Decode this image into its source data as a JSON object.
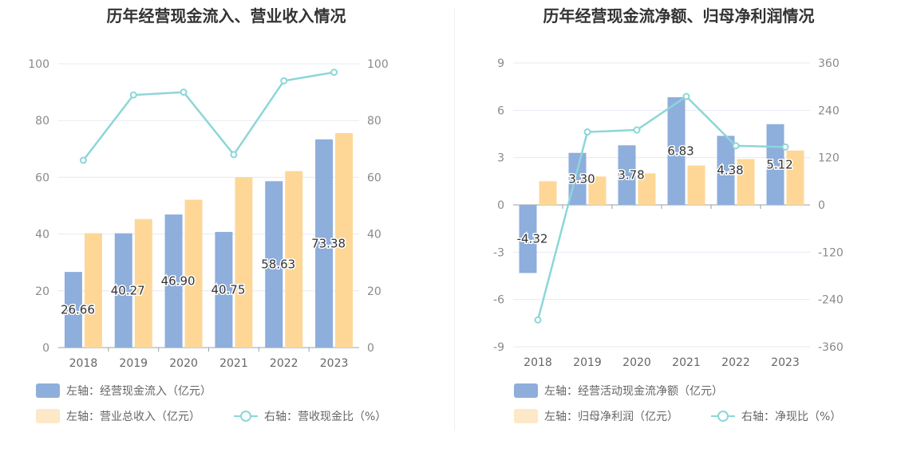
{
  "colors": {
    "blue": "#8eaedc",
    "orange": "#fed797",
    "line": "#8dd6d8"
  },
  "chart_data": [
    {
      "type": "bar",
      "title": "历年经营现金流入、营业收入情况",
      "categories": [
        "2018",
        "2019",
        "2020",
        "2021",
        "2022",
        "2023"
      ],
      "left_axis": {
        "ticks": [
          "0",
          "20",
          "40",
          "60",
          "80",
          "100"
        ],
        "ylim": [
          0,
          100
        ]
      },
      "right_axis": {
        "ticks": [
          "0",
          "20",
          "40",
          "60",
          "80",
          "100"
        ],
        "ylim": [
          0,
          100
        ]
      },
      "series": [
        {
          "name": "左轴：经营现金流入（亿元）",
          "axis": "left",
          "kind": "bar",
          "values": [
            26.66,
            40.27,
            46.9,
            40.75,
            58.63,
            73.38
          ],
          "labels": [
            "26.66",
            "40.27",
            "46.90",
            "40.75",
            "58.63",
            "73.38"
          ]
        },
        {
          "name": "左轴：营业总收入（亿元）",
          "axis": "left",
          "kind": "bar",
          "values": [
            40.3,
            45.3,
            52.1,
            60.0,
            62.2,
            75.6
          ]
        },
        {
          "name": "右轴：营收现金比（%）",
          "axis": "right",
          "kind": "line",
          "values": [
            66,
            89,
            90,
            68,
            94,
            97
          ]
        }
      ]
    },
    {
      "type": "bar",
      "title": "历年经营现金流净额、归母净利润情况",
      "categories": [
        "2018",
        "2019",
        "2020",
        "2021",
        "2022",
        "2023"
      ],
      "left_axis": {
        "ticks": [
          "-9",
          "-6",
          "-3",
          "0",
          "3",
          "6",
          "9"
        ],
        "ylim": [
          -9,
          9
        ]
      },
      "right_axis": {
        "ticks": [
          "-360",
          "-240",
          "-120",
          "0",
          "120",
          "240",
          "360"
        ],
        "ylim": [
          -360,
          360
        ]
      },
      "series": [
        {
          "name": "左轴：经营活动现金流净额（亿元）",
          "axis": "left",
          "kind": "bar",
          "values": [
            -4.32,
            3.3,
            3.78,
            6.83,
            4.38,
            5.12
          ],
          "labels": [
            "-4.32",
            "3.30",
            "3.78",
            "6.83",
            "4.38",
            "5.12"
          ]
        },
        {
          "name": "左轴：归母净利润（亿元）",
          "axis": "left",
          "kind": "bar",
          "values": [
            1.5,
            1.8,
            2.0,
            2.5,
            2.9,
            3.45
          ]
        },
        {
          "name": "右轴：净现比（%）",
          "axis": "right",
          "kind": "line",
          "values": [
            -292,
            185,
            190,
            275,
            150,
            147
          ]
        }
      ]
    }
  ]
}
